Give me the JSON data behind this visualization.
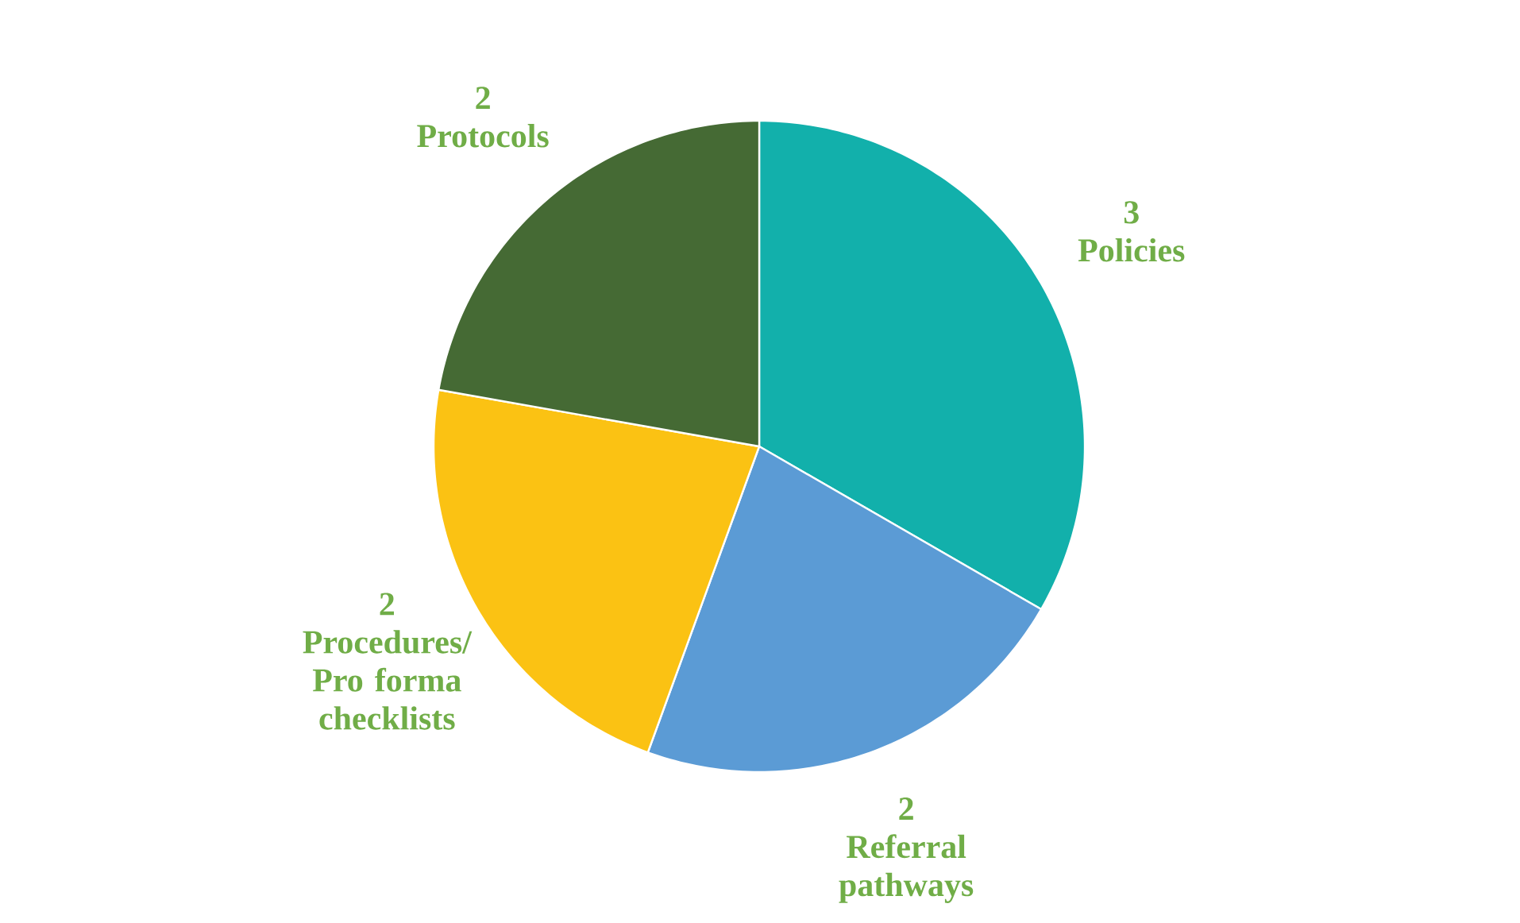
{
  "chart_data": {
    "type": "pie",
    "categories": [
      "Policies",
      "Referral pathways",
      "Procedures/ Pro forma checklists",
      "Protocols"
    ],
    "values": [
      3,
      2,
      2,
      2
    ],
    "colors": [
      "#12b0ab",
      "#5b9bd5",
      "#fbc213",
      "#456a34"
    ],
    "data_labels": true
  }
}
